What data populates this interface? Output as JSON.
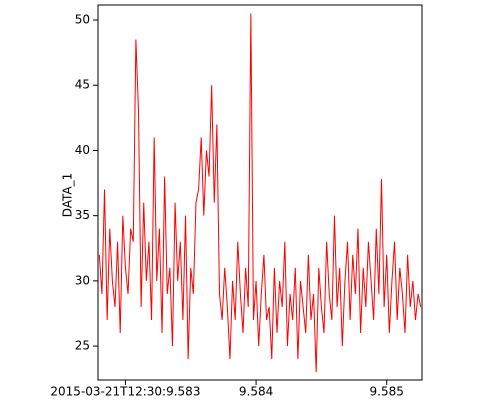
{
  "chart_data": {
    "type": "line",
    "y_label": "DATA_1",
    "color": "#ff0000",
    "x": [
      9.5828,
      9.58282,
      9.58284,
      9.58286,
      9.58288,
      9.5829,
      9.58292,
      9.58294,
      9.58296,
      9.58298,
      9.583,
      9.58302,
      9.58304,
      9.58306,
      9.58308,
      9.5831,
      9.58312,
      9.58314,
      9.58316,
      9.58318,
      9.5832,
      9.58322,
      9.58324,
      9.58326,
      9.58328,
      9.5833,
      9.58332,
      9.58334,
      9.58336,
      9.58338,
      9.5834,
      9.58342,
      9.58344,
      9.58346,
      9.58348,
      9.5835,
      9.58352,
      9.58354,
      9.58356,
      9.58358,
      9.5836,
      9.58362,
      9.58364,
      9.58366,
      9.58368,
      9.5837,
      9.58372,
      9.58374,
      9.58376,
      9.58378,
      9.5838,
      9.58382,
      9.58384,
      9.58386,
      9.58388,
      9.5839,
      9.58392,
      9.58394,
      9.58396,
      9.58398,
      9.584,
      9.58402,
      9.58404,
      9.58406,
      9.58408,
      9.5841,
      9.58412,
      9.58414,
      9.58416,
      9.58418,
      9.5842,
      9.58422,
      9.58424,
      9.58426,
      9.58428,
      9.5843,
      9.58432,
      9.58434,
      9.58436,
      9.58438,
      9.5844,
      9.58442,
      9.58444,
      9.58446,
      9.58448,
      9.5845,
      9.58452,
      9.58454,
      9.58456,
      9.58458,
      9.5846,
      9.58462,
      9.58464,
      9.58466,
      9.58468,
      9.5847,
      9.58472,
      9.58474,
      9.58476,
      9.58478,
      9.5848,
      9.58482,
      9.58484,
      9.58486,
      9.58488,
      9.5849,
      9.58492,
      9.58494,
      9.58496,
      9.58498,
      9.585,
      9.58502,
      9.58504,
      9.58506,
      9.58508,
      9.5851,
      9.58512,
      9.58514,
      9.58516,
      9.58518,
      9.5852,
      9.58522,
      9.58524,
      9.58526
    ],
    "values": [
      32,
      29,
      37,
      27,
      34,
      30,
      28,
      33,
      26,
      35,
      31,
      29,
      34,
      33,
      48.5,
      43,
      28,
      36,
      30,
      33,
      27,
      41,
      30,
      34,
      26,
      38,
      29,
      31,
      25,
      36,
      30,
      33,
      27,
      35,
      24,
      31,
      29,
      36,
      37,
      41,
      35,
      40,
      38,
      45,
      36,
      42,
      29,
      27,
      31,
      28,
      24,
      30,
      27,
      33,
      29,
      26,
      31,
      28,
      50.5,
      27,
      30,
      25,
      29,
      32,
      27,
      28,
      24,
      31,
      26,
      30,
      28,
      33,
      25,
      29,
      27,
      31,
      24,
      30,
      28,
      26,
      32,
      27,
      29,
      23,
      31,
      28,
      26,
      33,
      29,
      27,
      35,
      28,
      31,
      25,
      30,
      33,
      27,
      32,
      29,
      34,
      26,
      31,
      28,
      33,
      30,
      27,
      34,
      29,
      37.8,
      28,
      32,
      26,
      30,
      33,
      27,
      31,
      29,
      26,
      32,
      28,
      30,
      27,
      29,
      28
    ],
    "xlim": [
      9.58279,
      9.58527
    ],
    "xticks": [
      {
        "value": 9.583,
        "label": "2015-03-21T12:30:9.583"
      },
      {
        "value": 9.584,
        "label": "9.584"
      },
      {
        "value": 9.585,
        "label": "9.585"
      }
    ],
    "ylim": [
      22.4,
      51.15
    ],
    "yticks": [
      25,
      30,
      35,
      40,
      45,
      50
    ]
  }
}
